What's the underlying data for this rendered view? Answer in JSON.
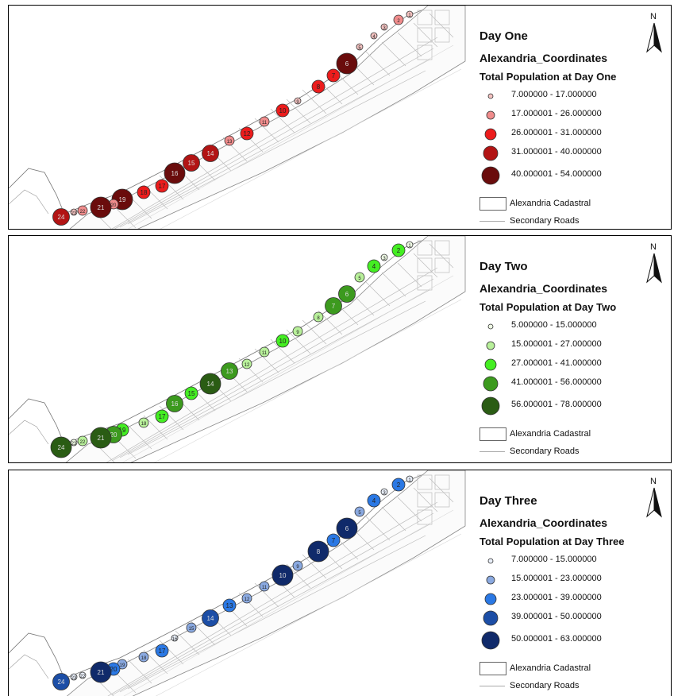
{
  "panels": [
    {
      "title": "Day One",
      "layer": "Alexandria_Coordinates",
      "field": "Total Population at Day One",
      "colors": [
        "#f3c2c0",
        "#f08c8c",
        "#ec1c1c",
        "#b21414",
        "#6a0c0c"
      ],
      "classes": [
        {
          "label": "7.000000 - 17.000000"
        },
        {
          "label": "17.000001 - 26.000000"
        },
        {
          "label": "26.000001 - 31.000000"
        },
        {
          "label": "31.000001 - 40.000000"
        },
        {
          "label": "40.000001 - 54.000000"
        }
      ],
      "cadastral_label": "Alexandria Cadastral",
      "roads_label": "Secondary Roads",
      "north": "N",
      "points": [
        {
          "n": "1",
          "c": 0
        },
        {
          "n": "2",
          "c": 1
        },
        {
          "n": "3",
          "c": 0
        },
        {
          "n": "4",
          "c": 0
        },
        {
          "n": "5",
          "c": 0
        },
        {
          "n": "6",
          "c": 4
        },
        {
          "n": "7",
          "c": 2
        },
        {
          "n": "8",
          "c": 2
        },
        {
          "n": "9",
          "c": 0
        },
        {
          "n": "10",
          "c": 2
        },
        {
          "n": "11",
          "c": 1
        },
        {
          "n": "12",
          "c": 2
        },
        {
          "n": "13",
          "c": 1
        },
        {
          "n": "14",
          "c": 3
        },
        {
          "n": "15",
          "c": 3
        },
        {
          "n": "16",
          "c": 4
        },
        {
          "n": "17",
          "c": 2
        },
        {
          "n": "18",
          "c": 2
        },
        {
          "n": "19",
          "c": 4
        },
        {
          "n": "20",
          "c": 1
        },
        {
          "n": "21",
          "c": 4
        },
        {
          "n": "22",
          "c": 1
        },
        {
          "n": "23",
          "c": 0
        },
        {
          "n": "24",
          "c": 3
        }
      ]
    },
    {
      "title": "Day Two",
      "layer": "Alexandria_Coordinates",
      "field": "Total Population at Day Two",
      "colors": [
        "#eef9e4",
        "#b8f09a",
        "#44ee22",
        "#3c9a1e",
        "#2a5c14"
      ],
      "classes": [
        {
          "label": "5.000000 - 15.000000"
        },
        {
          "label": "15.000001 - 27.000000"
        },
        {
          "label": "27.000001 - 41.000000"
        },
        {
          "label": "41.000001 - 56.000000"
        },
        {
          "label": "56.000001 - 78.000000"
        }
      ],
      "cadastral_label": "Alexandria Cadastral",
      "roads_label": "Secondary Roads",
      "north": "N",
      "points": [
        {
          "n": "1",
          "c": 0
        },
        {
          "n": "2",
          "c": 2
        },
        {
          "n": "3",
          "c": 0
        },
        {
          "n": "4",
          "c": 2
        },
        {
          "n": "5",
          "c": 1
        },
        {
          "n": "6",
          "c": 3
        },
        {
          "n": "7",
          "c": 3
        },
        {
          "n": "8",
          "c": 1
        },
        {
          "n": "9",
          "c": 1
        },
        {
          "n": "10",
          "c": 2
        },
        {
          "n": "11",
          "c": 1
        },
        {
          "n": "12",
          "c": 1
        },
        {
          "n": "13",
          "c": 3
        },
        {
          "n": "14",
          "c": 4
        },
        {
          "n": "15",
          "c": 2
        },
        {
          "n": "16",
          "c": 3
        },
        {
          "n": "17",
          "c": 2
        },
        {
          "n": "18",
          "c": 1
        },
        {
          "n": "19",
          "c": 2
        },
        {
          "n": "20",
          "c": 3
        },
        {
          "n": "21",
          "c": 4
        },
        {
          "n": "22",
          "c": 1
        },
        {
          "n": "23",
          "c": 0
        },
        {
          "n": "24",
          "c": 4
        }
      ]
    },
    {
      "title": "Day Three",
      "layer": "Alexandria_Coordinates",
      "field": "Total Population at Day Three",
      "colors": [
        "#e8eef8",
        "#8aa9e0",
        "#2a78e4",
        "#1c4ea6",
        "#102a6a"
      ],
      "classes": [
        {
          "label": "7.000000 - 15.000000"
        },
        {
          "label": "15.000001 - 23.000000"
        },
        {
          "label": "23.000001 - 39.000000"
        },
        {
          "label": "39.000001 - 50.000000"
        },
        {
          "label": "50.000001 - 63.000000"
        }
      ],
      "cadastral_label": "Alexandria Cadastral",
      "roads_label": "Secondary Roads",
      "north": "N",
      "points": [
        {
          "n": "1",
          "c": 0
        },
        {
          "n": "2",
          "c": 2
        },
        {
          "n": "3",
          "c": 0
        },
        {
          "n": "4",
          "c": 2
        },
        {
          "n": "5",
          "c": 1
        },
        {
          "n": "6",
          "c": 4
        },
        {
          "n": "7",
          "c": 2
        },
        {
          "n": "8",
          "c": 4
        },
        {
          "n": "9",
          "c": 1
        },
        {
          "n": "10",
          "c": 4
        },
        {
          "n": "11",
          "c": 1
        },
        {
          "n": "12",
          "c": 1
        },
        {
          "n": "13",
          "c": 2
        },
        {
          "n": "14",
          "c": 3
        },
        {
          "n": "15",
          "c": 1
        },
        {
          "n": "16",
          "c": 0
        },
        {
          "n": "17",
          "c": 2
        },
        {
          "n": "18",
          "c": 1
        },
        {
          "n": "19",
          "c": 1
        },
        {
          "n": "20",
          "c": 2
        },
        {
          "n": "21",
          "c": 4
        },
        {
          "n": "22",
          "c": 0
        },
        {
          "n": "23",
          "c": 0
        },
        {
          "n": "24",
          "c": 3
        }
      ]
    }
  ]
}
